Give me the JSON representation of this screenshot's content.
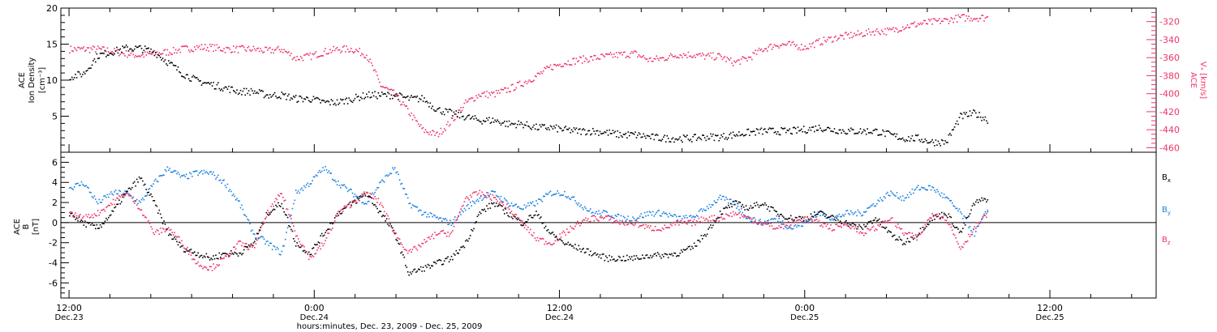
{
  "colors": {
    "black": "#000000",
    "pink": "#ee3366",
    "blue": "#1a7fe0",
    "axis": "#000000"
  },
  "chart_data": [
    {
      "type": "scatter",
      "panel": "top",
      "ylabel_lines": [
        "ACE",
        "Ion Density",
        "[cm⁻³]"
      ],
      "y2label_lines": [
        "ACE",
        "Vₓ [km/s]"
      ],
      "ylim": [
        0,
        20
      ],
      "y2lim": [
        -465,
        -305
      ],
      "y_ticks": [
        5,
        10,
        15,
        20
      ],
      "y_tick_labels": [
        "5",
        "10",
        "15",
        "20"
      ],
      "y2_ticks": [
        -460,
        -440,
        -420,
        -400,
        -380,
        -360,
        -340,
        -320
      ],
      "y2_tick_labels": [
        "-460",
        "-440",
        "-420",
        "-400",
        "-380",
        "-360",
        "-340",
        "-320"
      ],
      "series": [
        {
          "name": "Ion Density",
          "color": "#000000",
          "axis": "left",
          "x": [
            0,
            1,
            2,
            3,
            4,
            5,
            6,
            7,
            8,
            9,
            10,
            11,
            12,
            13,
            14,
            15,
            16,
            17,
            18,
            19,
            20,
            21,
            22,
            23,
            24,
            25,
            26,
            27,
            28,
            29,
            30,
            31,
            32,
            33,
            34,
            35,
            36,
            37,
            38,
            39,
            40,
            41,
            42,
            43,
            44,
            45,
            46,
            47,
            48,
            49,
            50,
            51,
            52,
            53,
            54,
            55,
            56,
            57,
            58,
            59,
            60,
            61,
            62,
            63,
            64,
            65
          ],
          "y": [
            10.5,
            11,
            13.5,
            14,
            14.5,
            14.5,
            14,
            12.5,
            11,
            10,
            9.5,
            9,
            8.5,
            8.5,
            8,
            8,
            7.5,
            7.5,
            7,
            7,
            7.5,
            8,
            8,
            8,
            7.5,
            7.5,
            6,
            5.5,
            5,
            4.5,
            4.5,
            4,
            4,
            3.5,
            3.5,
            3.2,
            3,
            3,
            2.8,
            2.5,
            2.5,
            2.2,
            2,
            2,
            2,
            2.2,
            2.2,
            2.5,
            2.8,
            3,
            3,
            3,
            3.2,
            3.5,
            3.2,
            3,
            3,
            3,
            2.5,
            2,
            2,
            1.5,
            1.5,
            5,
            5.5,
            4.5
          ]
        },
        {
          "name": "Vx",
          "color": "#ee3366",
          "axis": "right",
          "x": [
            0,
            1,
            2,
            3,
            4,
            5,
            6,
            7,
            8,
            9,
            10,
            11,
            12,
            13,
            14,
            15,
            16,
            17,
            18,
            19,
            20,
            21,
            22,
            23,
            24,
            25,
            26,
            27,
            28,
            29,
            30,
            31,
            32,
            33,
            34,
            35,
            36,
            37,
            38,
            39,
            40,
            41,
            42,
            43,
            44,
            45,
            46,
            47,
            48,
            49,
            50,
            51,
            52,
            53,
            54,
            55,
            56,
            57,
            58,
            59,
            60,
            61,
            62,
            63,
            64,
            65
          ],
          "y": [
            -350,
            -350,
            -350,
            -352,
            -355,
            -357,
            -355,
            -353,
            -350,
            -348,
            -348,
            -350,
            -350,
            -350,
            -352,
            -350,
            -360,
            -358,
            -353,
            -350,
            -350,
            -356,
            -390,
            -400,
            -420,
            -440,
            -445,
            -430,
            -410,
            -400,
            -400,
            -395,
            -388,
            -380,
            -370,
            -365,
            -362,
            -360,
            -358,
            -356,
            -355,
            -362,
            -360,
            -356,
            -356,
            -358,
            -358,
            -365,
            -360,
            -350,
            -345,
            -345,
            -348,
            -342,
            -338,
            -335,
            -333,
            -330,
            -330,
            -325,
            -322,
            -320,
            -318,
            -315,
            -315,
            -315
          ]
        }
      ]
    },
    {
      "type": "scatter",
      "panel": "bottom",
      "ylabel_lines": [
        "ACE",
        "B",
        "[nT]"
      ],
      "ylim": [
        -7.5,
        7
      ],
      "y_ticks": [
        -6,
        -4,
        -2,
        0,
        2,
        4,
        6
      ],
      "y_tick_labels": [
        "-6",
        "-4",
        "-2",
        "0",
        "2",
        "4",
        "6"
      ],
      "legend_position": "right",
      "legend": [
        "Bx",
        "By",
        "Bz"
      ],
      "series": [
        {
          "name": "Bx",
          "color": "#000000",
          "x": [
            0,
            1,
            2,
            3,
            4,
            5,
            6,
            7,
            8,
            9,
            10,
            11,
            12,
            13,
            14,
            15,
            16,
            17,
            18,
            19,
            20,
            21,
            22,
            23,
            24,
            25,
            26,
            27,
            28,
            29,
            30,
            31,
            32,
            33,
            34,
            35,
            36,
            37,
            38,
            39,
            40,
            41,
            42,
            43,
            44,
            45,
            46,
            47,
            48,
            49,
            50,
            51,
            52,
            53,
            54,
            55,
            56,
            57,
            58,
            59,
            60,
            61,
            62,
            63,
            64,
            65
          ],
          "y": [
            1,
            0,
            -0.5,
            1,
            3,
            4.5,
            2,
            -1,
            -2.5,
            -3,
            -3.5,
            -3,
            -3,
            -2,
            1,
            2,
            -2,
            -3,
            -1,
            1,
            2,
            3,
            1,
            -1,
            -5,
            -4.5,
            -4,
            -3.5,
            -2,
            1,
            2,
            1,
            0,
            1,
            -1,
            -2,
            -2.5,
            -3,
            -3.5,
            -3.5,
            -3.5,
            -3.2,
            -3.2,
            -3,
            -2.5,
            -1,
            1,
            2,
            1.5,
            2,
            1,
            0.5,
            0.5,
            1,
            0.5,
            0,
            -0.5,
            0.5,
            -1,
            -2,
            -1,
            0.5,
            1,
            -1,
            2,
            2.5
          ]
        },
        {
          "name": "By",
          "color": "#1a7fe0",
          "x": [
            0,
            1,
            2,
            3,
            4,
            5,
            6,
            7,
            8,
            9,
            10,
            11,
            12,
            13,
            14,
            15,
            16,
            17,
            18,
            19,
            20,
            21,
            22,
            23,
            24,
            25,
            26,
            27,
            28,
            29,
            30,
            31,
            32,
            33,
            34,
            35,
            36,
            37,
            38,
            39,
            40,
            41,
            42,
            43,
            44,
            45,
            46,
            47,
            48,
            49,
            50,
            51,
            52,
            53,
            54,
            55,
            56,
            57,
            58,
            59,
            60,
            61,
            62,
            63,
            64,
            65
          ],
          "y": [
            3.5,
            4,
            2,
            3,
            3,
            2,
            4,
            5.5,
            4.5,
            5,
            5,
            4,
            2,
            -1,
            -2,
            -3,
            3,
            4,
            5.5,
            4,
            3,
            2,
            4,
            5.5,
            2,
            1,
            0.5,
            0,
            1.5,
            2.5,
            3,
            2,
            1.5,
            2,
            3,
            3,
            2,
            1,
            1,
            0.5,
            0.5,
            1,
            1,
            0.5,
            0.5,
            1.5,
            2.5,
            2,
            0.5,
            0,
            0.5,
            -0.5,
            0,
            1,
            0.5,
            1,
            1,
            2,
            3,
            2.5,
            3.5,
            3.5,
            2.5,
            1,
            -1,
            1.5
          ]
        },
        {
          "name": "Bz",
          "color": "#ee3366",
          "x": [
            0,
            1,
            2,
            3,
            4,
            5,
            6,
            7,
            8,
            9,
            10,
            11,
            12,
            13,
            14,
            15,
            16,
            17,
            18,
            19,
            20,
            21,
            22,
            23,
            24,
            25,
            26,
            27,
            28,
            29,
            30,
            31,
            32,
            33,
            34,
            35,
            36,
            37,
            38,
            39,
            40,
            41,
            42,
            43,
            44,
            45,
            46,
            47,
            48,
            49,
            50,
            51,
            52,
            53,
            54,
            55,
            56,
            57,
            58,
            59,
            60,
            61,
            62,
            63,
            64,
            65
          ],
          "y": [
            1,
            0.5,
            1,
            2,
            3,
            1.5,
            -1,
            -0.5,
            -2,
            -4,
            -4.5,
            -3.5,
            -2,
            -2.5,
            1,
            3,
            -1,
            -3.5,
            -2,
            1,
            2,
            3,
            2,
            -1,
            -3,
            -2,
            -1,
            -1,
            2.5,
            3,
            2.5,
            1.5,
            0,
            -1.5,
            -2,
            -1,
            0,
            0.5,
            0.5,
            0,
            0,
            -0.5,
            -0.5,
            0,
            0,
            0.5,
            0.5,
            1,
            0.5,
            0,
            -0.5,
            0,
            0.5,
            0,
            -0.5,
            0,
            -1,
            -0.5,
            0.5,
            -1,
            -1.5,
            1,
            0.5,
            -2.5,
            -0.5,
            1
          ]
        }
      ]
    }
  ],
  "x_axis": {
    "ticks": [
      {
        "time": "12:00",
        "date": "Dec.23"
      },
      {
        "time": "0:00",
        "date": "Dec.24"
      },
      {
        "time": "12:00",
        "date": "Dec.24"
      },
      {
        "time": "0:00",
        "date": "Dec.25"
      },
      {
        "time": "12:00",
        "date": "Dec.25"
      }
    ],
    "tick_hours": [
      0,
      12,
      24,
      36,
      48
    ],
    "xlim_hours": [
      -0.4,
      53.2
    ],
    "data_x_to_hours_factor": 0.692,
    "title": "hours:minutes, Dec. 23, 2009 - Dec. 25, 2009"
  },
  "legend_labels": {
    "bx": "B",
    "bx_sub": "x",
    "by": "B",
    "by_sub": "y",
    "bz": "B",
    "bz_sub": "z"
  }
}
